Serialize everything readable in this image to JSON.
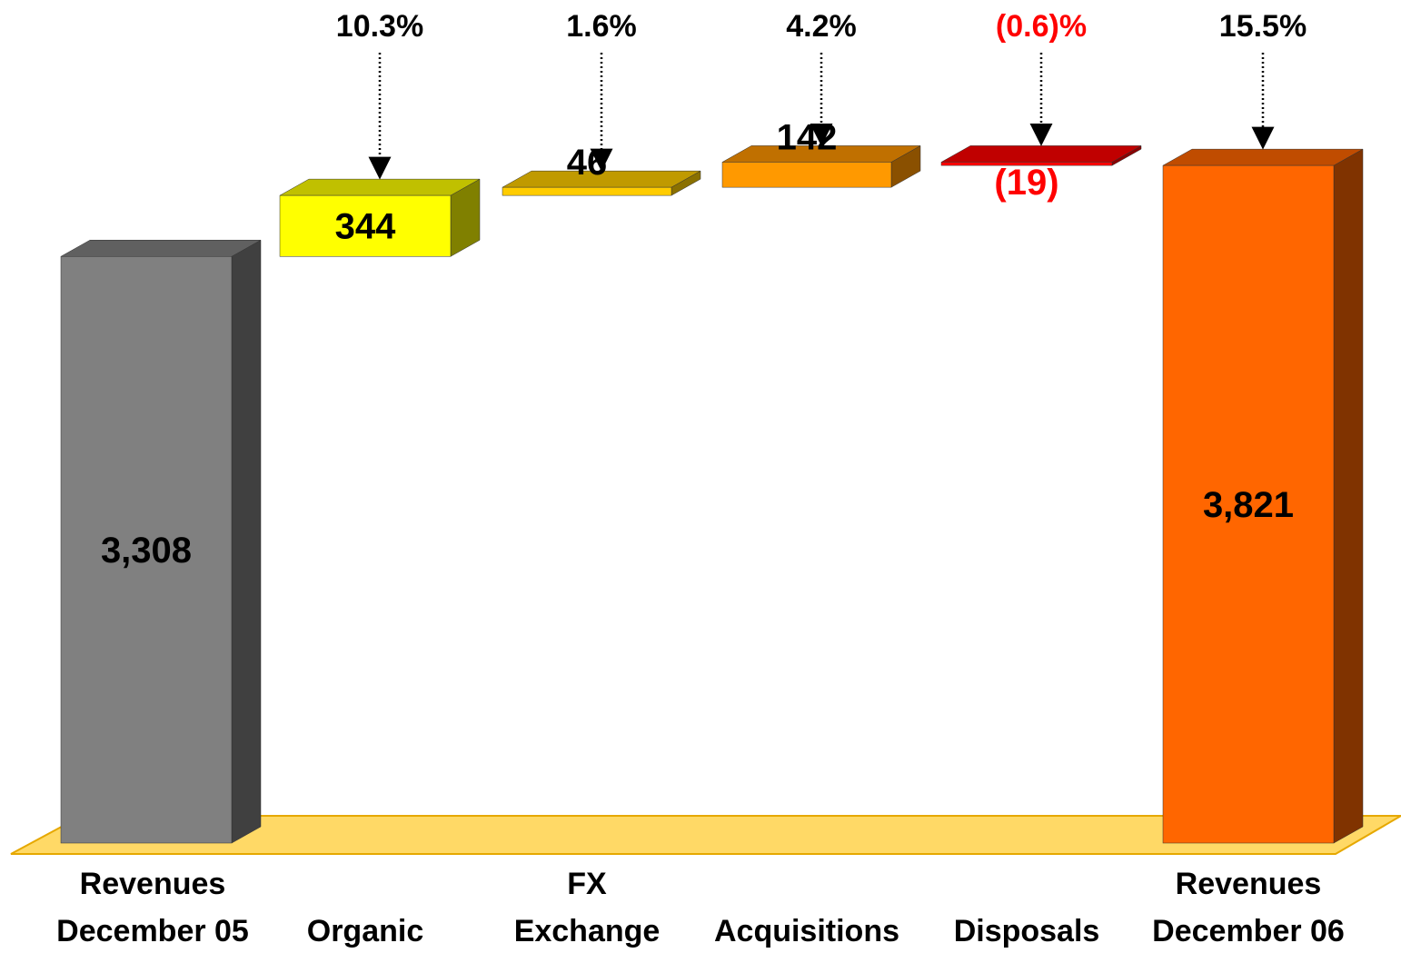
{
  "chart_data": {
    "type": "bar",
    "subtype": "waterfall",
    "categories": [
      [
        "Revenues",
        "December 05"
      ],
      [
        "Organic"
      ],
      [
        "FX",
        "Exchange"
      ],
      [
        "Acquisitions"
      ],
      [
        "Disposals"
      ],
      [
        "Revenues",
        "December 06"
      ]
    ],
    "values": [
      3308,
      344,
      46,
      142,
      -19,
      3821
    ],
    "value_labels": [
      "3,308",
      "344",
      "46",
      "142",
      "(19)",
      "3,821"
    ],
    "percent_labels": [
      "",
      "10.3%",
      "1.6%",
      "4.2%",
      "(0.6)%",
      "15.5%"
    ],
    "kinds": [
      "total",
      "delta",
      "delta",
      "delta",
      "delta",
      "total"
    ],
    "colors": {
      "front": [
        "#808080",
        "#ffff00",
        "#ffcc00",
        "#ff9900",
        "#ff0000",
        "#ff6600"
      ],
      "side": [
        "#404040",
        "#808000",
        "#8a7000",
        "#8a5000",
        "#8a0000",
        "#803300"
      ],
      "top": [
        "#606060",
        "#c0c000",
        "#c09a00",
        "#c07000",
        "#c00000",
        "#c04c00"
      ],
      "negative_text": "#ff0000",
      "text": "#000000",
      "floor": "#ffd966",
      "floor_edge": "#e6a800"
    },
    "xlabel": "",
    "ylabel": "",
    "title": "",
    "grid": false,
    "legend": "none"
  }
}
